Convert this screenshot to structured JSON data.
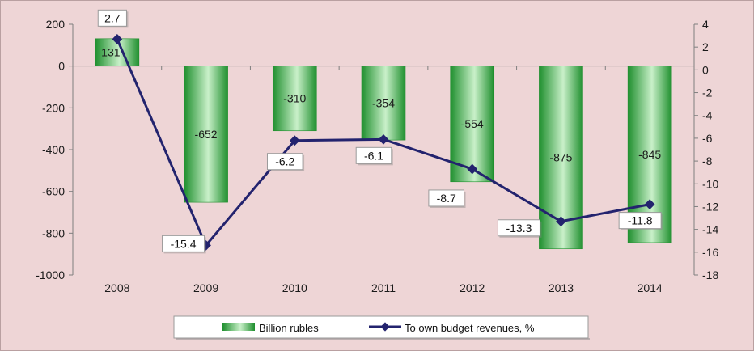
{
  "chart_data": {
    "type": "bar",
    "categories": [
      "2008",
      "2009",
      "2010",
      "2011",
      "2012",
      "2013",
      "2014"
    ],
    "series": [
      {
        "name": "Billion rubles",
        "type": "bar",
        "axis": "left",
        "values": [
          131,
          -652,
          -310,
          -354,
          -554,
          -875,
          -845
        ],
        "labels": [
          "131",
          "-652",
          "-310",
          "-354",
          "-554",
          "-875",
          "-845"
        ]
      },
      {
        "name": "To own budget revenues, %",
        "type": "line",
        "axis": "right",
        "values": [
          2.7,
          -15.4,
          -6.2,
          -6.1,
          -8.7,
          -13.3,
          -11.8
        ],
        "labels": [
          "2.7",
          "-15.4",
          "-6.2",
          "-6.1",
          "-8.7",
          "-13.3",
          "-11.8"
        ]
      }
    ],
    "left_axis": {
      "ylim": [
        -1000,
        200
      ],
      "ticks": [
        200,
        0,
        -200,
        -400,
        -600,
        -800,
        -1000
      ],
      "tick_labels": [
        "200",
        "0",
        "-200",
        "-400",
        "-600",
        "-800",
        "-1000"
      ]
    },
    "right_axis": {
      "ylim": [
        -18,
        4
      ],
      "ticks": [
        4,
        2,
        0,
        -2,
        -4,
        -6,
        -8,
        -10,
        -12,
        -14,
        -16,
        -18
      ],
      "tick_labels": [
        "4",
        "2",
        "0",
        "-2",
        "-4",
        "-6",
        "-8",
        "-10",
        "-12",
        "-14",
        "-16",
        "-18"
      ]
    },
    "legend": {
      "position": "bottom-center",
      "entries": [
        "Billion rubles",
        "To own budget revenues, %"
      ]
    },
    "colors": {
      "background": "#eed5d6",
      "bar_dark": "#1f8f2e",
      "bar_light": "#c9f0c9",
      "line": "#23236e",
      "axis": "#7f7f7f"
    },
    "grid": false
  }
}
